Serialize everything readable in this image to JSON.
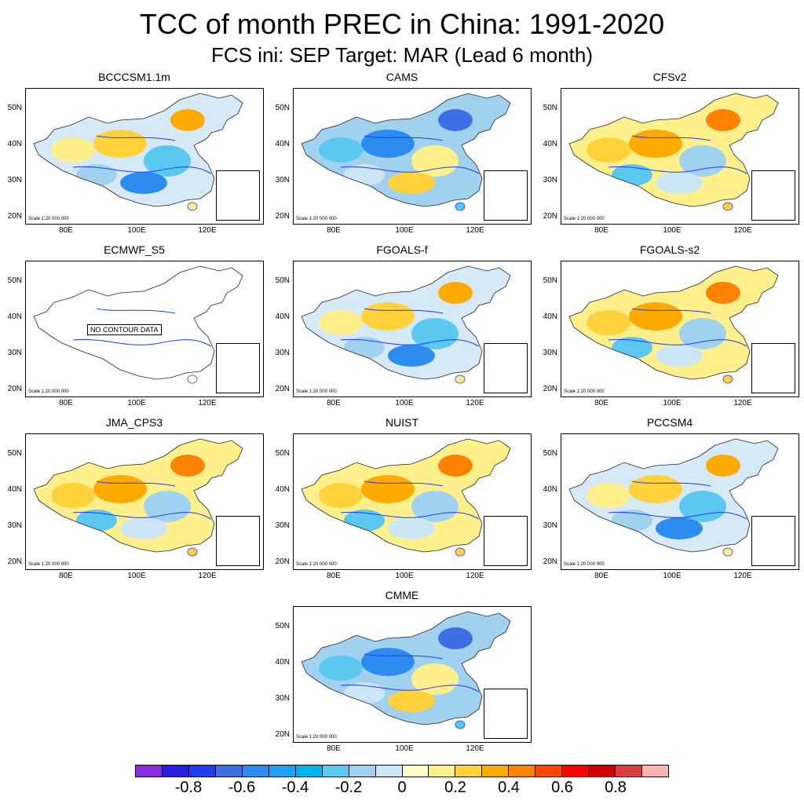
{
  "title": "TCC of month PREC in China: 1991-2020",
  "subtitle": "FCS ini: SEP    Target: MAR (Lead 6 month)",
  "axes": {
    "lat_labels": [
      "50N",
      "40N",
      "30N",
      "20N"
    ],
    "lon_labels": [
      "80E",
      "100E",
      "120E"
    ],
    "scale_text": "Scale 1:20 000 000"
  },
  "panels": [
    {
      "name": "BCCCSM1.1m",
      "tone": "mixed"
    },
    {
      "name": "CAMS",
      "tone": "negative"
    },
    {
      "name": "CFSv2",
      "tone": "positive"
    },
    {
      "name": "ECMWF_S5",
      "tone": "none",
      "note": "NO CONTOUR DATA"
    },
    {
      "name": "FGOALS-f",
      "tone": "mixed"
    },
    {
      "name": "FGOALS-s2",
      "tone": "positive"
    },
    {
      "name": "JMA_CPS3",
      "tone": "positive"
    },
    {
      "name": "NUIST",
      "tone": "positive"
    },
    {
      "name": "PCCSM4",
      "tone": "mixed"
    },
    {
      "name": "CMME",
      "tone": "negative"
    }
  ],
  "colorbar": {
    "colors": [
      "#8a2be2",
      "#2a1ee6",
      "#1e3cf0",
      "#3c6ee6",
      "#2d8cf0",
      "#1ea0f5",
      "#00b4f0",
      "#5ac8f0",
      "#a0d2f0",
      "#cde6f5",
      "#ffffc8",
      "#fff08c",
      "#ffd23c",
      "#ffaa00",
      "#ff8200",
      "#ff4600",
      "#ff0000",
      "#d20000",
      "#dc3c3c",
      "#ffb4b4"
    ],
    "ticks": [
      "-0.8",
      "-0.6",
      "-0.4",
      "-0.2",
      "0",
      "0.2",
      "0.4",
      "0.6",
      "0.8"
    ]
  }
}
